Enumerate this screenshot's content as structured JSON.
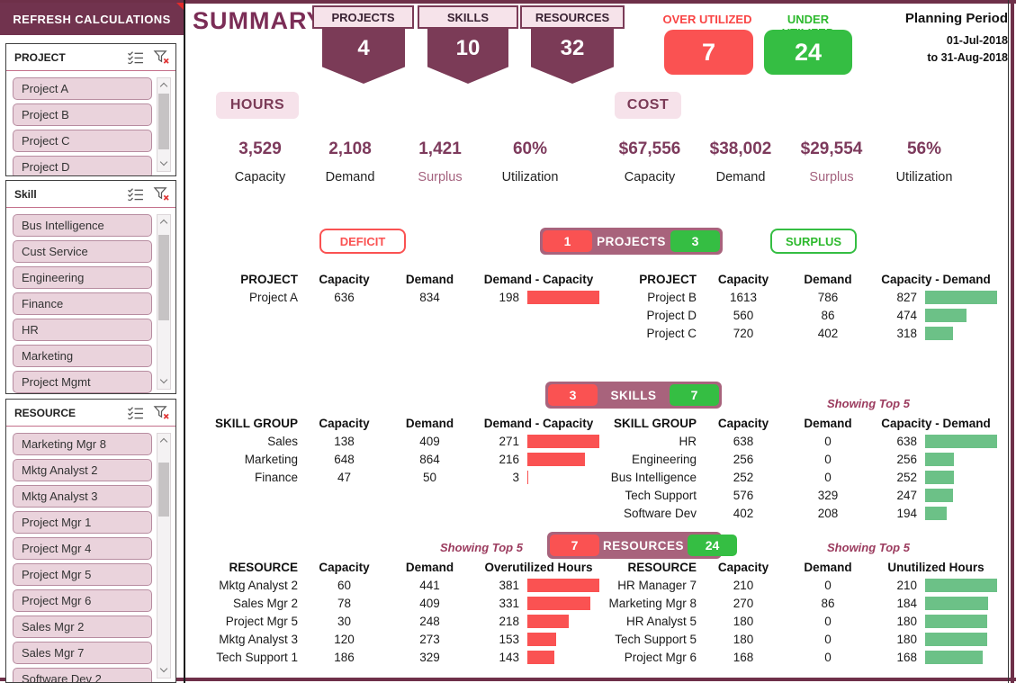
{
  "colors": {
    "maroon": "#7B3B57",
    "mauve": "#A8637C",
    "red": "#FA5252",
    "green": "#35BE43",
    "bar_green": "#6CC187",
    "pink": "#F6E3EA"
  },
  "sidebar": {
    "refresh_button": "REFRESH CALCULATIONS",
    "slicers": [
      {
        "title": "PROJECT",
        "items": [
          "Project A",
          "Project B",
          "Project C",
          "Project D"
        ]
      },
      {
        "title": "Skill",
        "items": [
          "Bus Intelligence",
          "Cust Service",
          "Engineering",
          "Finance",
          "HR",
          "Marketing",
          "Project Mgmt"
        ]
      },
      {
        "title": "RESOURCE",
        "items": [
          "Marketing Mgr 8",
          "Mktg Analyst 2",
          "Mktg Analyst 3",
          "Project Mgr 1",
          "Project Mgr 4",
          "Project Mgr 5",
          "Project Mgr 6",
          "Sales Mgr 2",
          "Sales Mgr 7",
          "Software Dev 2"
        ]
      }
    ]
  },
  "header": {
    "title": "SUMMARY",
    "counters": [
      {
        "label": "PROJECTS",
        "value": "4"
      },
      {
        "label": "SKILLS",
        "value": "10"
      },
      {
        "label": "RESOURCES",
        "value": "32"
      }
    ],
    "over_utilized": {
      "label": "OVER UTILIZED",
      "value": "7"
    },
    "under_utilized": {
      "label": "UNDER UTILIZED",
      "value": "24"
    },
    "planning_period": {
      "label": "Planning Period",
      "from": "01-Jul-2018",
      "to": "to 31-Aug-2018"
    }
  },
  "kpis": {
    "hours": {
      "badge": "HOURS",
      "stats": [
        {
          "value": "3,529",
          "label": "Capacity"
        },
        {
          "value": "2,108",
          "label": "Demand"
        },
        {
          "value": "1,421",
          "label": "Surplus"
        },
        {
          "value": "60%",
          "label": "Utilization"
        }
      ]
    },
    "cost": {
      "badge": "COST",
      "stats": [
        {
          "value": "$67,556",
          "label": "Capacity"
        },
        {
          "value": "$38,002",
          "label": "Demand"
        },
        {
          "value": "$29,554",
          "label": "Surplus"
        },
        {
          "value": "56%",
          "label": "Utilization"
        }
      ]
    }
  },
  "labels": {
    "deficit": "DEFICIT",
    "surplus": "SURPLUS",
    "showing_top5": "Showing Top 5"
  },
  "projects": {
    "banner": {
      "deficit": "1",
      "label": "PROJECTS",
      "surplus": "3"
    },
    "deficit": {
      "headers": [
        "PROJECT",
        "Capacity",
        "Demand",
        "Demand - Capacity"
      ],
      "rows": [
        {
          "name": "Project A",
          "capacity": "636",
          "demand": "834",
          "delta": "198"
        }
      ]
    },
    "surplus": {
      "headers": [
        "PROJECT",
        "Capacity",
        "Demand",
        "Capacity - Demand"
      ],
      "rows": [
        {
          "name": "Project B",
          "capacity": "1613",
          "demand": "786",
          "delta": "827"
        },
        {
          "name": "Project D",
          "capacity": "560",
          "demand": "86",
          "delta": "474"
        },
        {
          "name": "Project C",
          "capacity": "720",
          "demand": "402",
          "delta": "318"
        }
      ]
    }
  },
  "skills": {
    "banner": {
      "deficit": "3",
      "label": "SKILLS",
      "surplus": "7"
    },
    "deficit": {
      "headers": [
        "SKILL GROUP",
        "Capacity",
        "Demand",
        "Demand - Capacity"
      ],
      "rows": [
        {
          "name": "Sales",
          "capacity": "138",
          "demand": "409",
          "delta": "271"
        },
        {
          "name": "Marketing",
          "capacity": "648",
          "demand": "864",
          "delta": "216"
        },
        {
          "name": "Finance",
          "capacity": "47",
          "demand": "50",
          "delta": "3"
        }
      ]
    },
    "surplus": {
      "headers": [
        "SKILL GROUP",
        "Capacity",
        "Demand",
        "Capacity - Demand"
      ],
      "rows": [
        {
          "name": "HR",
          "capacity": "638",
          "demand": "0",
          "delta": "638"
        },
        {
          "name": "Engineering",
          "capacity": "256",
          "demand": "0",
          "delta": "256"
        },
        {
          "name": "Bus Intelligence",
          "capacity": "252",
          "demand": "0",
          "delta": "252"
        },
        {
          "name": "Tech Support",
          "capacity": "576",
          "demand": "329",
          "delta": "247"
        },
        {
          "name": "Software Dev",
          "capacity": "402",
          "demand": "208",
          "delta": "194"
        }
      ]
    }
  },
  "resources": {
    "banner": {
      "deficit": "7",
      "label": "RESOURCES",
      "surplus": "24"
    },
    "deficit": {
      "headers": [
        "RESOURCE",
        "Capacity",
        "Demand",
        "Overutilized Hours"
      ],
      "rows": [
        {
          "name": "Mktg Analyst 2",
          "capacity": "60",
          "demand": "441",
          "delta": "381"
        },
        {
          "name": "Sales Mgr 2",
          "capacity": "78",
          "demand": "409",
          "delta": "331"
        },
        {
          "name": "Project Mgr 5",
          "capacity": "30",
          "demand": "248",
          "delta": "218"
        },
        {
          "name": "Mktg Analyst 3",
          "capacity": "120",
          "demand": "273",
          "delta": "153"
        },
        {
          "name": "Tech Support 1",
          "capacity": "186",
          "demand": "329",
          "delta": "143"
        }
      ]
    },
    "surplus": {
      "headers": [
        "RESOURCE",
        "Capacity",
        "Demand",
        "Unutilized Hours"
      ],
      "rows": [
        {
          "name": "HR Manager 7",
          "capacity": "210",
          "demand": "0",
          "delta": "210"
        },
        {
          "name": "Marketing Mgr 8",
          "capacity": "270",
          "demand": "86",
          "delta": "184"
        },
        {
          "name": "HR Analyst 5",
          "capacity": "180",
          "demand": "0",
          "delta": "180"
        },
        {
          "name": "Tech Support 5",
          "capacity": "180",
          "demand": "0",
          "delta": "180"
        },
        {
          "name": "Project Mgr 6",
          "capacity": "168",
          "demand": "0",
          "delta": "168"
        }
      ]
    }
  }
}
